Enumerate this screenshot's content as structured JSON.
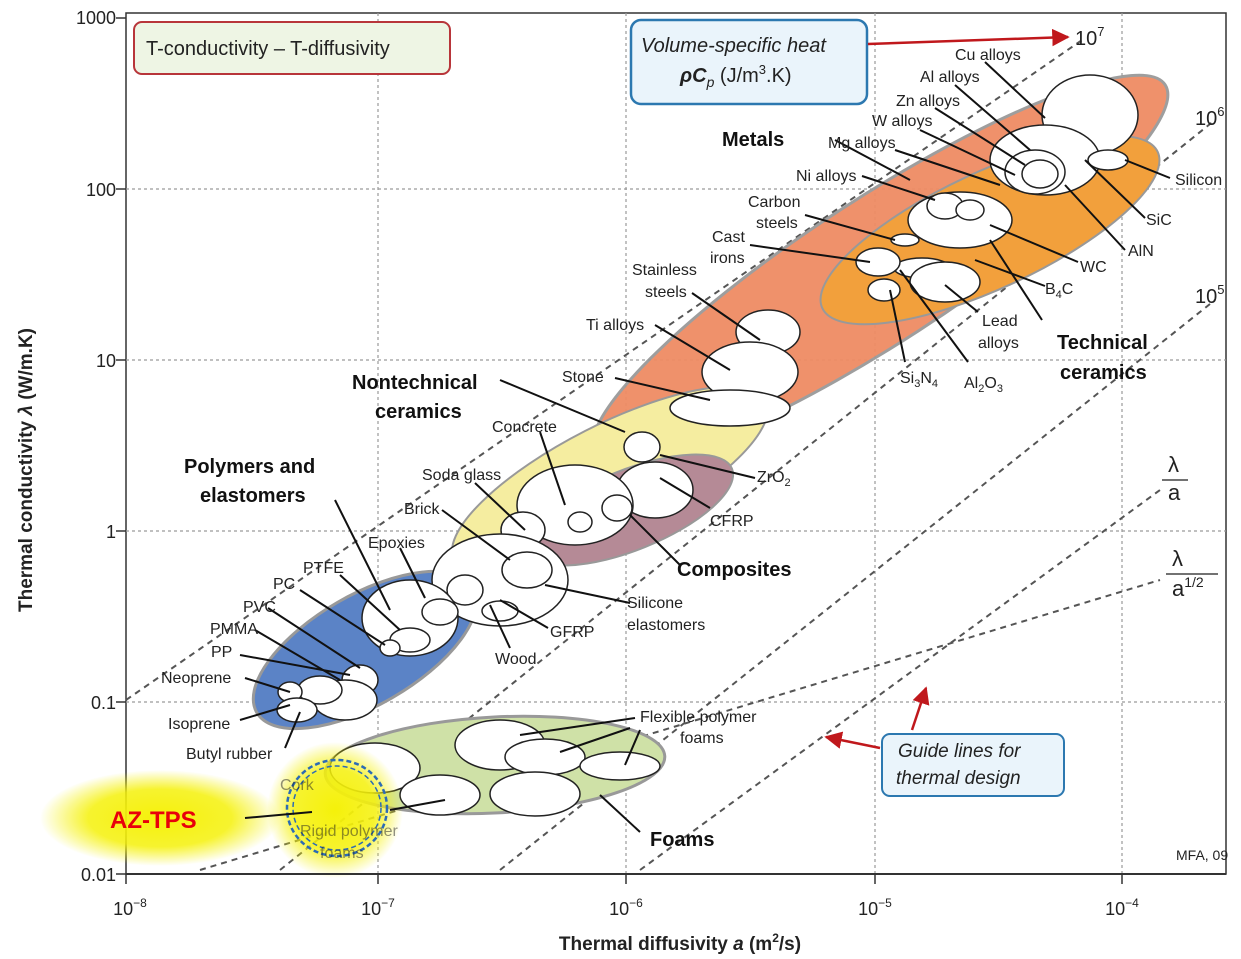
{
  "chart_data": {
    "type": "scatter",
    "title": "T-conductivity – T-diffusivity",
    "xlabel": "Thermal diffusivity a (m²/s)",
    "ylabel": "Thermal conductivity λ (W/m.K)",
    "xscale": "log",
    "yscale": "log",
    "xlim": [
      1e-08,
      0.0003
    ],
    "ylim": [
      0.01,
      1000
    ],
    "grid": true,
    "x_tick_labels": [
      "10⁻⁸",
      "10⁻⁷",
      "10⁻⁶",
      "10⁻⁵",
      "10⁻⁴"
    ],
    "y_tick_labels": [
      "0.01",
      "0.1",
      "1",
      "10",
      "100",
      "1000"
    ],
    "heat_box": {
      "line1": "Volume-specific heat",
      "line2": "ρCp (J/m³.K)"
    },
    "guide_box": {
      "line1": "Guide lines for",
      "line2": "thermal design"
    },
    "credit": "MFA, 09",
    "guide_line_labels": [
      "10⁷",
      "10⁶",
      "10⁵"
    ],
    "ratio_labels": {
      "lambda": "λ",
      "a": "a",
      "a_half": "a1/2"
    },
    "highlight": {
      "label": "AZ-TPS",
      "color": "#e8000b",
      "glow": "#f5f10a"
    },
    "groups": [
      {
        "name": "Metals",
        "color": "#ef8c64"
      },
      {
        "name": "Technical ceramics",
        "color": "#f2a03c"
      },
      {
        "name": "Nontechnical ceramics",
        "color": "#f5eda0"
      },
      {
        "name": "Composites",
        "color": "#b58a96"
      },
      {
        "name": "Polymers and elastomers",
        "color": "#5b83c6"
      },
      {
        "name": "Foams",
        "color": "#cfe1a7"
      }
    ],
    "materials": [
      {
        "label": "Cu alloys",
        "a": 0.00011,
        "lambda": 320
      },
      {
        "label": "Al alloys",
        "a": 6.5e-05,
        "lambda": 180
      },
      {
        "label": "Zn alloys",
        "a": 4e-05,
        "lambda": 115
      },
      {
        "label": "W alloys",
        "a": 5e-05,
        "lambda": 140
      },
      {
        "label": "Mg alloys",
        "a": 4.5e-05,
        "lambda": 120
      },
      {
        "label": "Ni alloys",
        "a": 1.8e-05,
        "lambda": 75
      },
      {
        "label": "Carbon steels",
        "a": 1.3e-05,
        "lambda": 45
      },
      {
        "label": "Cast irons",
        "a": 1e-05,
        "lambda": 28
      },
      {
        "label": "Stainless steels",
        "a": 4e-06,
        "lambda": 16
      },
      {
        "label": "Ti alloys",
        "a": 3e-06,
        "lambda": 8
      },
      {
        "label": "Stone",
        "a": 1.5e-06,
        "lambda": 2.9
      },
      {
        "label": "ZrO2",
        "a": 1e-06,
        "lambda": 2.5
      },
      {
        "label": "CFRP",
        "a": 1.2e-06,
        "lambda": 1.9
      },
      {
        "label": "Concrete",
        "a": 4.5e-07,
        "lambda": 1.5
      },
      {
        "label": "Soda glass",
        "a": 5e-07,
        "lambda": 1.1
      },
      {
        "label": "Brick",
        "a": 3.5e-07,
        "lambda": 0.75
      },
      {
        "label": "Epoxies",
        "a": 1.1e-07,
        "lambda": 0.25
      },
      {
        "label": "PTFE",
        "a": 1.2e-07,
        "lambda": 0.22
      },
      {
        "label": "PC",
        "a": 1e-07,
        "lambda": 0.2
      },
      {
        "label": "PVC",
        "a": 9e-08,
        "lambda": 0.18
      },
      {
        "label": "PMMA",
        "a": 9e-08,
        "lambda": 0.17
      },
      {
        "label": "PP",
        "a": 7e-08,
        "lambda": 0.14
      },
      {
        "label": "Neoprene",
        "a": 6e-08,
        "lambda": 0.12
      },
      {
        "label": "Isoprene",
        "a": 4.5e-08,
        "lambda": 0.12
      },
      {
        "label": "Butyl rubber",
        "a": 5e-08,
        "lambda": 0.09
      },
      {
        "label": "Wood",
        "a": 2.8e-07,
        "lambda": 0.2
      },
      {
        "label": "GFRP",
        "a": 3e-07,
        "lambda": 0.4
      },
      {
        "label": "Silicone elastomers",
        "a": 3e-07,
        "lambda": 0.35
      },
      {
        "label": "Flexible polymer foams",
        "a": 4e-07,
        "lambda": 0.04
      },
      {
        "label": "Cork",
        "a": 9e-08,
        "lambda": 0.035
      },
      {
        "label": "Rigid polymer foams",
        "a": 1.8e-07,
        "lambda": 0.025
      },
      {
        "label": "Silicon",
        "a": 9e-05,
        "lambda": 140
      },
      {
        "label": "SiC",
        "a": 5e-05,
        "lambda": 130
      },
      {
        "label": "AlN",
        "a": 5.5e-05,
        "lambda": 100
      },
      {
        "label": "WC",
        "a": 3e-05,
        "lambda": 70
      },
      {
        "label": "B4C",
        "a": 2e-05,
        "lambda": 35
      },
      {
        "label": "Lead alloys",
        "a": 2e-05,
        "lambda": 30
      },
      {
        "label": "Si3N4",
        "a": 1.2e-05,
        "lambda": 25
      },
      {
        "label": "Al2O3",
        "a": 1.3e-05,
        "lambda": 30
      },
      {
        "label": "AZ-TPS",
        "a": 7e-08,
        "lambda": 0.025
      }
    ]
  }
}
